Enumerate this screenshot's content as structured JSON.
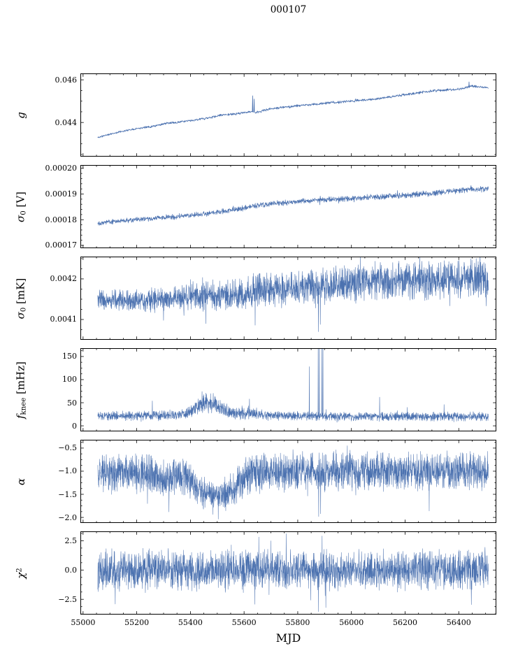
{
  "chart_data": {
    "type": "line",
    "title": "000107",
    "xlabel": "MJD",
    "background": "#ffffff",
    "axis_color": "#000000",
    "text_color": "#000000",
    "line_color": "#4c72b0",
    "xlim": [
      54990,
      56540
    ],
    "x_data_range": [
      55055,
      56510
    ],
    "xticks": [
      55000,
      55200,
      55400,
      55600,
      55800,
      56000,
      56200,
      56400
    ],
    "xtick_labels": [
      "55000",
      "55200",
      "55400",
      "55600",
      "55800",
      "56000",
      "56200",
      "56400"
    ],
    "x_minor_step": 50,
    "panels": [
      {
        "id": "g",
        "ylabel_parts": [
          {
            "text": "g",
            "kind": "i"
          }
        ],
        "ylim": [
          0.0424,
          0.0463
        ],
        "yticks": [
          {
            "v": 0.044,
            "label": "0.044"
          },
          {
            "v": 0.046,
            "label": "0.046"
          }
        ],
        "y_minor_step": 0.0005,
        "seed": 11,
        "samples": 1300,
        "line_width": 0.8,
        "trend": [
          [
            55055,
            0.0433
          ],
          [
            55100,
            0.04345
          ],
          [
            55150,
            0.0436
          ],
          [
            55200,
            0.04372
          ],
          [
            55260,
            0.04382
          ],
          [
            55310,
            0.04396
          ],
          [
            55360,
            0.04402
          ],
          [
            55420,
            0.04412
          ],
          [
            55470,
            0.04422
          ],
          [
            55520,
            0.04436
          ],
          [
            55570,
            0.0444
          ],
          [
            55610,
            0.04448
          ],
          [
            55630,
            0.04452
          ],
          [
            55645,
            0.04446
          ],
          [
            55700,
            0.04465
          ],
          [
            55800,
            0.04478
          ],
          [
            55900,
            0.0449
          ],
          [
            56000,
            0.045
          ],
          [
            56100,
            0.04512
          ],
          [
            56200,
            0.0453
          ],
          [
            56300,
            0.04548
          ],
          [
            56400,
            0.04556
          ],
          [
            56450,
            0.0457
          ],
          [
            56510,
            0.04562
          ]
        ],
        "noise": [
          [
            55055,
            3e-05
          ],
          [
            55300,
            3.5e-05
          ],
          [
            55600,
            4e-05
          ],
          [
            56000,
            4.5e-05
          ],
          [
            56510,
            4e-05
          ]
        ],
        "spikes": [
          [
            55632,
            0.04525
          ],
          [
            55637,
            0.0451
          ],
          [
            56438,
            0.0459
          ]
        ]
      },
      {
        "id": "sigma0_V",
        "ylabel_parts": [
          {
            "text": "σ",
            "kind": "i"
          },
          {
            "text": "0",
            "kind": "sub"
          },
          {
            "text": " [V]",
            "kind": "n"
          }
        ],
        "ylim": [
          0.0001689,
          0.0002013
        ],
        "yticks": [
          {
            "v": 0.00017,
            "label": "0.00017"
          },
          {
            "v": 0.00018,
            "label": "0.00018"
          },
          {
            "v": 0.00019,
            "label": "0.00019"
          },
          {
            "v": 0.0002,
            "label": "0.00020"
          }
        ],
        "y_minor_step": 2e-06,
        "seed": 22,
        "samples": 1700,
        "line_width": 0.7,
        "trend": [
          [
            55055,
            0.0001788
          ],
          [
            55150,
            0.0001796
          ],
          [
            55250,
            0.0001804
          ],
          [
            55350,
            0.0001812
          ],
          [
            55450,
            0.0001822
          ],
          [
            55550,
            0.0001836
          ],
          [
            55600,
            0.0001846
          ],
          [
            55650,
            0.0001856
          ],
          [
            55700,
            0.0001862
          ],
          [
            55750,
            0.0001866
          ],
          [
            55800,
            0.0001871
          ],
          [
            55850,
            0.0001876
          ],
          [
            55900,
            0.0001878
          ],
          [
            55950,
            0.000188
          ],
          [
            56000,
            0.0001883
          ],
          [
            56050,
            0.0001886
          ],
          [
            56100,
            0.0001889
          ],
          [
            56150,
            0.0001892
          ],
          [
            56200,
            0.0001896
          ],
          [
            56250,
            0.0001899
          ],
          [
            56300,
            0.0001902
          ],
          [
            56350,
            0.0001908
          ],
          [
            56400,
            0.0001914
          ],
          [
            56450,
            0.0001918
          ],
          [
            56510,
            0.000192
          ]
        ],
        "noise": [
          [
            55055,
            7e-07
          ],
          [
            56510,
            9e-07
          ]
        ],
        "spikes": [
          [
            55882,
            0.0001858
          ]
        ]
      },
      {
        "id": "sigma0_mK",
        "ylabel_parts": [
          {
            "text": "σ",
            "kind": "i"
          },
          {
            "text": "0",
            "kind": "sub"
          },
          {
            "text": " [mK]",
            "kind": "n"
          }
        ],
        "ylim": [
          0.00405,
          0.004255
        ],
        "yticks": [
          {
            "v": 0.0041,
            "label": "0.0041"
          },
          {
            "v": 0.0042,
            "label": "0.0042"
          }
        ],
        "y_minor_step": 2.5e-05,
        "seed": 33,
        "samples": 2200,
        "line_width": 0.6,
        "trend": [
          [
            55055,
            0.00415
          ],
          [
            55150,
            0.004146
          ],
          [
            55250,
            0.004148
          ],
          [
            55350,
            0.004152
          ],
          [
            55420,
            0.004163
          ],
          [
            55470,
            0.004158
          ],
          [
            55550,
            0.004158
          ],
          [
            55620,
            0.004165
          ],
          [
            55660,
            0.004172
          ],
          [
            55720,
            0.004174
          ],
          [
            55800,
            0.004178
          ],
          [
            55900,
            0.004184
          ],
          [
            56000,
            0.004189
          ],
          [
            56100,
            0.004193
          ],
          [
            56200,
            0.004198
          ],
          [
            56300,
            0.004196
          ],
          [
            56400,
            0.0042
          ],
          [
            56510,
            0.004202
          ]
        ],
        "noise": [
          [
            55055,
            2e-05
          ],
          [
            55350,
            2e-05
          ],
          [
            55420,
            3e-05
          ],
          [
            55500,
            2.6e-05
          ],
          [
            55600,
            3e-05
          ],
          [
            55650,
            3.4e-05
          ],
          [
            55800,
            3e-05
          ],
          [
            56000,
            3.4e-05
          ],
          [
            56510,
            3.4e-05
          ]
        ],
        "spikes": [
          [
            55300,
            0.004098
          ],
          [
            55457,
            0.00409
          ],
          [
            55641,
            0.004086
          ],
          [
            55877,
            0.00407
          ],
          [
            55884,
            0.004088
          ]
        ]
      },
      {
        "id": "fknee",
        "ylabel_parts": [
          {
            "text": "f",
            "kind": "i"
          },
          {
            "text": "knee",
            "kind": "sub"
          },
          {
            "text": " [mHz]",
            "kind": "n"
          }
        ],
        "ylim": [
          -12,
          168
        ],
        "yticks": [
          {
            "v": 0,
            "label": "0"
          },
          {
            "v": 50,
            "label": "50"
          },
          {
            "v": 100,
            "label": "100"
          },
          {
            "v": 150,
            "label": "150"
          }
        ],
        "y_minor_step": 12.5,
        "seed": 44,
        "samples": 2200,
        "line_width": 0.6,
        "clamp_min": 2,
        "trend": [
          [
            55055,
            21
          ],
          [
            55250,
            22
          ],
          [
            55350,
            24
          ],
          [
            55400,
            30
          ],
          [
            55430,
            45
          ],
          [
            55460,
            52
          ],
          [
            55490,
            47
          ],
          [
            55520,
            37
          ],
          [
            55560,
            28
          ],
          [
            55600,
            24
          ],
          [
            55615,
            30
          ],
          [
            55640,
            26
          ],
          [
            55680,
            22
          ],
          [
            55800,
            21
          ],
          [
            56000,
            20
          ],
          [
            56200,
            20
          ],
          [
            56510,
            20
          ]
        ],
        "noise": [
          [
            55055,
            7
          ],
          [
            55380,
            8
          ],
          [
            55420,
            14
          ],
          [
            55470,
            16
          ],
          [
            55520,
            12
          ],
          [
            55560,
            9
          ],
          [
            55620,
            10
          ],
          [
            55700,
            7
          ],
          [
            56540,
            7
          ]
        ],
        "spikes": [
          [
            55258,
            54
          ],
          [
            55620,
            58
          ],
          [
            55843,
            128
          ],
          [
            55876,
            182
          ],
          [
            55881,
            185
          ],
          [
            55890,
            180
          ],
          [
            55894,
            172
          ],
          [
            56105,
            62
          ],
          [
            56208,
            40
          ],
          [
            56345,
            46
          ]
        ]
      },
      {
        "id": "alpha",
        "ylabel_parts": [
          {
            "text": "α",
            "kind": "i"
          }
        ],
        "ylim": [
          -2.12,
          -0.32
        ],
        "yticks": [
          {
            "v": -0.5,
            "label": "−0.5"
          },
          {
            "v": -1.0,
            "label": "−1.0"
          },
          {
            "v": -1.5,
            "label": "−1.5"
          },
          {
            "v": -2.0,
            "label": "−2.0"
          }
        ],
        "y_minor_step": 0.125,
        "seed": 55,
        "samples": 2400,
        "line_width": 0.55,
        "trend": [
          [
            55055,
            -1.02
          ],
          [
            55260,
            -1.05
          ],
          [
            55290,
            -1.18
          ],
          [
            55330,
            -1.12
          ],
          [
            55370,
            -1.1
          ],
          [
            55410,
            -1.25
          ],
          [
            55440,
            -1.45
          ],
          [
            55470,
            -1.55
          ],
          [
            55520,
            -1.55
          ],
          [
            55560,
            -1.4
          ],
          [
            55590,
            -1.18
          ],
          [
            55620,
            -1.05
          ],
          [
            55700,
            -1.02
          ],
          [
            56000,
            -1.0
          ],
          [
            56510,
            -1.0
          ]
        ],
        "noise": [
          [
            55055,
            0.3
          ],
          [
            55400,
            0.3
          ],
          [
            55430,
            0.26
          ],
          [
            55500,
            0.26
          ],
          [
            55560,
            0.28
          ],
          [
            55600,
            0.3
          ],
          [
            56510,
            0.3
          ]
        ],
        "spikes": [
          [
            55240,
            -1.7
          ],
          [
            55320,
            -1.88
          ],
          [
            55878,
            -1.98
          ],
          [
            55885,
            -1.92
          ],
          [
            56290,
            -1.86
          ]
        ]
      },
      {
        "id": "chi2",
        "ylabel_parts": [
          {
            "text": "χ",
            "kind": "i"
          },
          {
            "text": "2",
            "kind": "sup"
          }
        ],
        "ylim": [
          -3.8,
          3.3
        ],
        "yticks": [
          {
            "v": -2.5,
            "label": "−2.5"
          },
          {
            "v": 0.0,
            "label": "0.0"
          },
          {
            "v": 2.5,
            "label": "2.5"
          }
        ],
        "y_minor_step": 0.625,
        "seed": 66,
        "samples": 2400,
        "line_width": 0.55,
        "trend": [
          [
            55055,
            0
          ],
          [
            56510,
            0
          ]
        ],
        "noise": [
          [
            55055,
            1.25
          ],
          [
            56510,
            1.25
          ]
        ],
        "spikes": [
          [
            55120,
            -2.9
          ],
          [
            55757,
            3.1
          ],
          [
            55877,
            -3.55
          ],
          [
            55891,
            2.9
          ],
          [
            55905,
            -3.2
          ],
          [
            56447,
            -2.95
          ]
        ]
      }
    ]
  }
}
